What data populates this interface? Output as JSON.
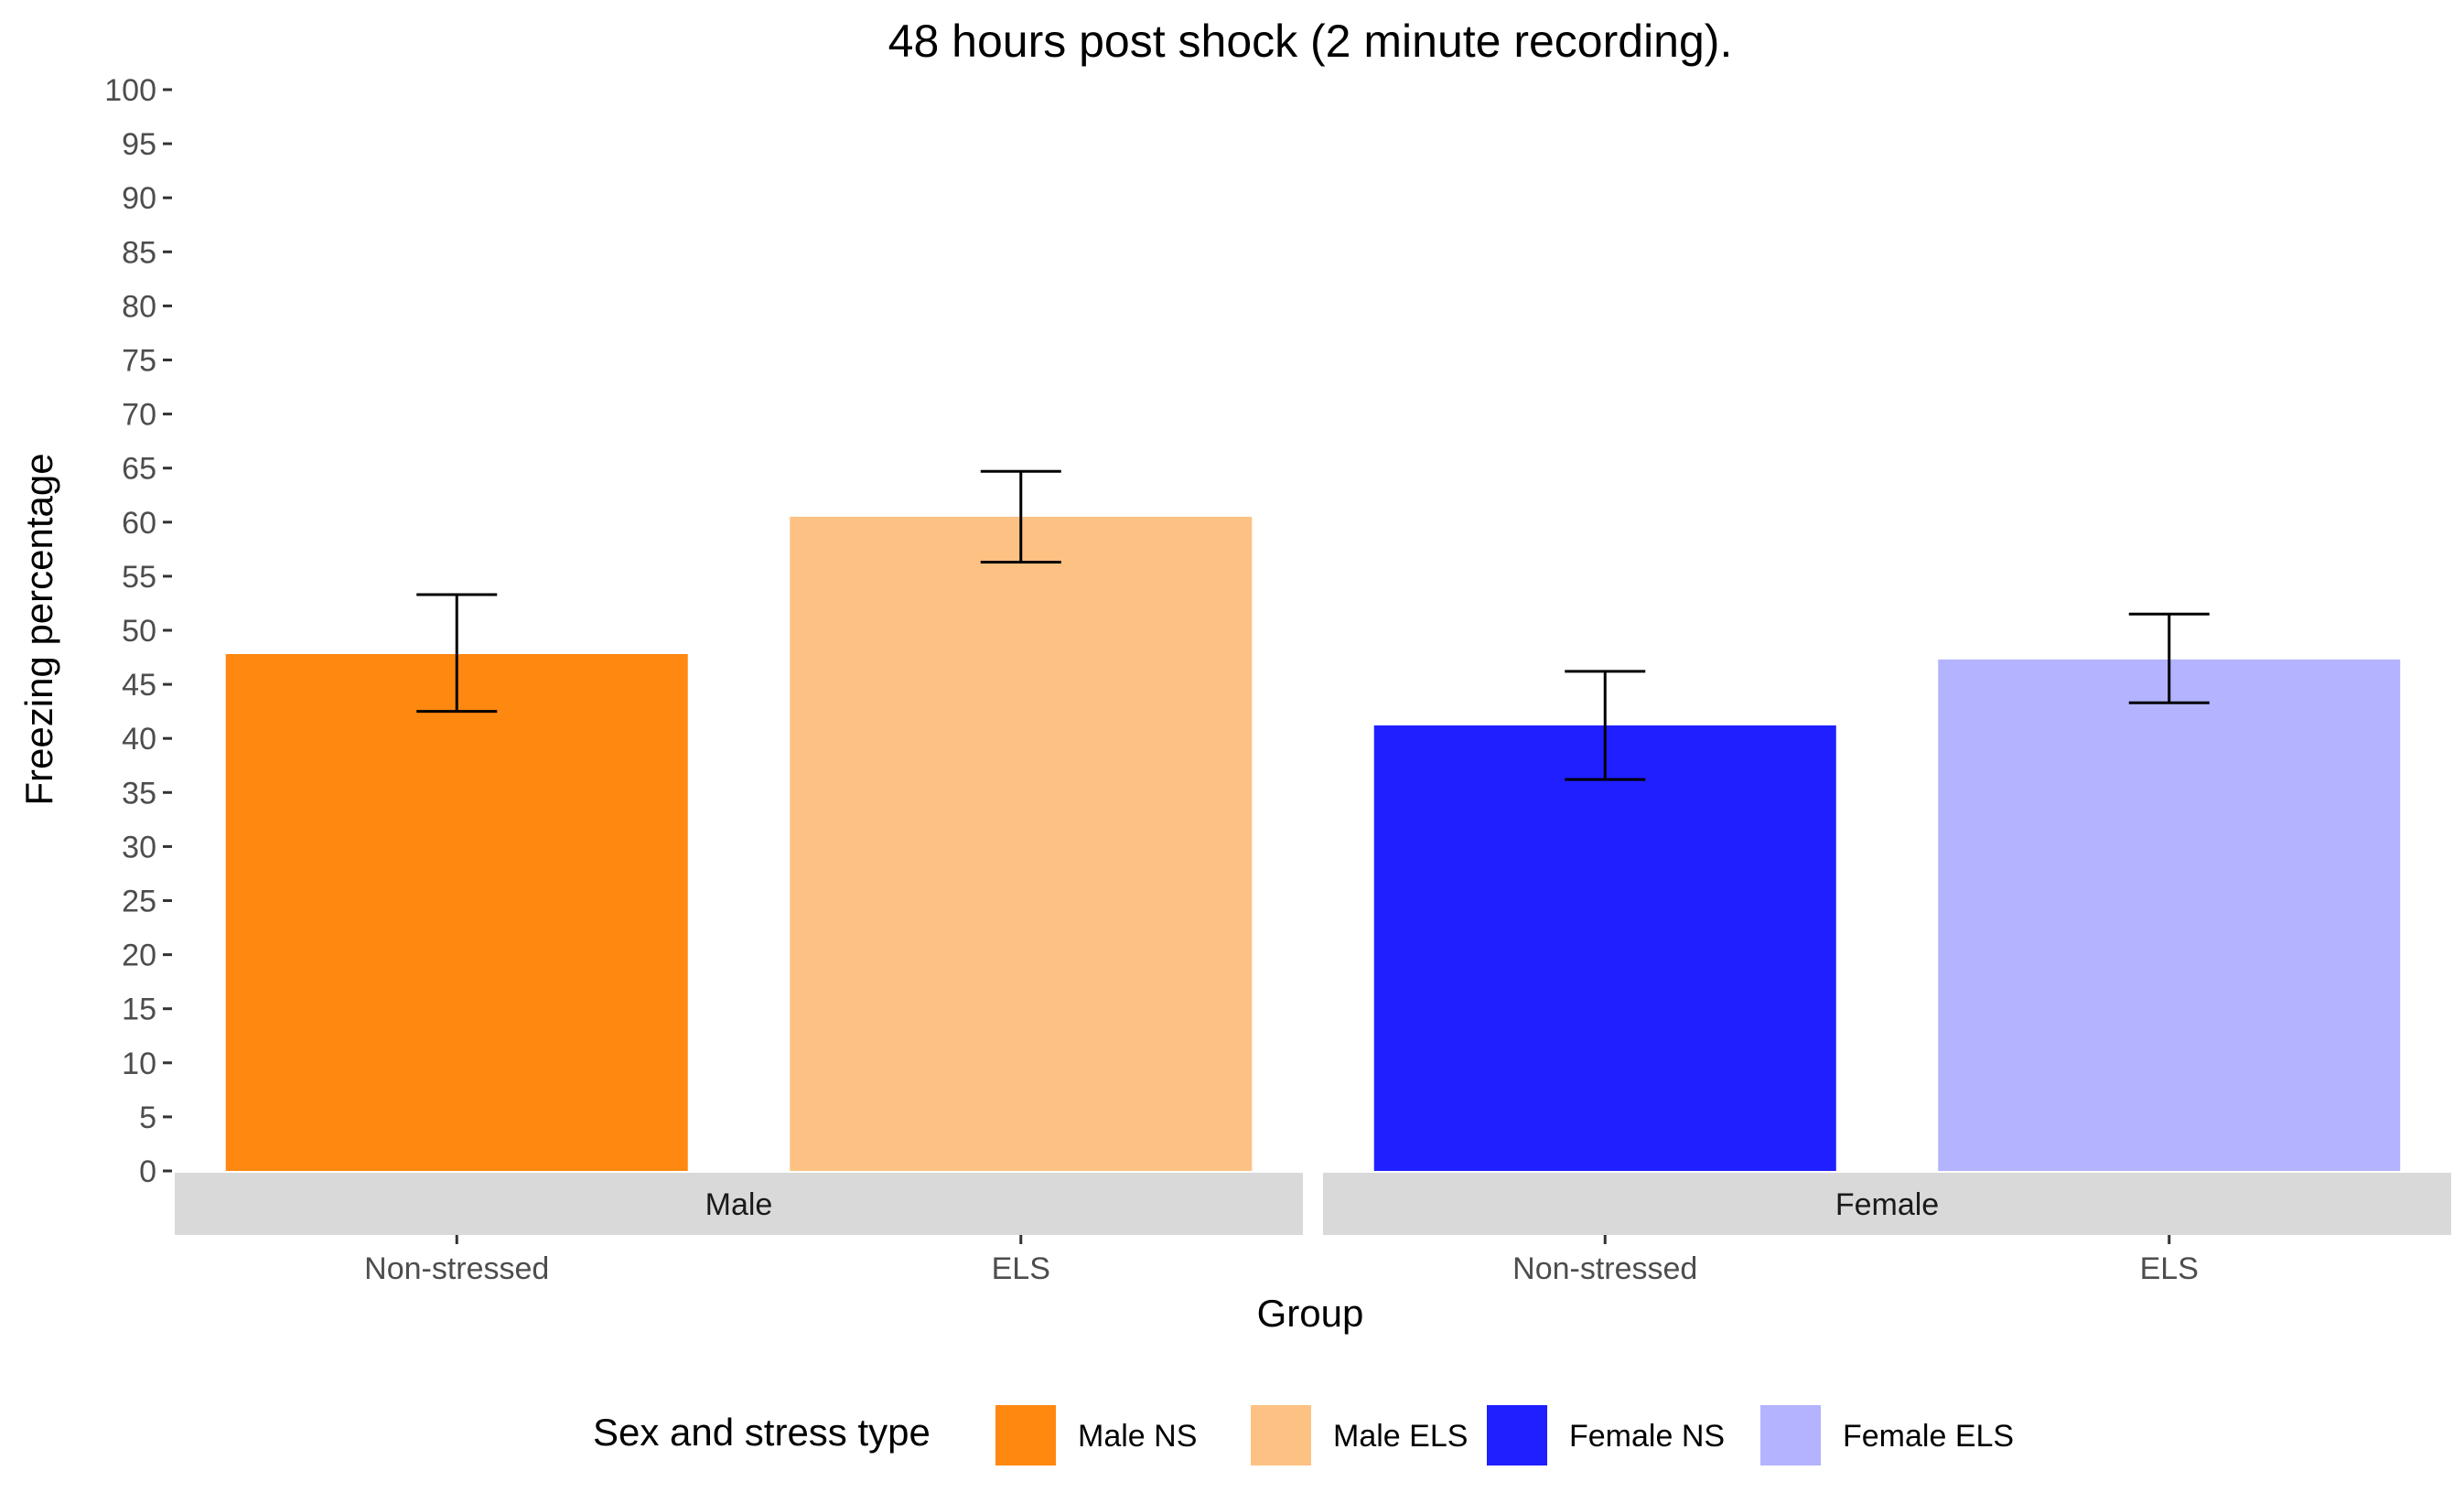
{
  "chart_data": {
    "type": "bar",
    "title": "48 hours post shock (2 minute recording).",
    "xlabel": "Group",
    "ylabel": "Freezing percentage",
    "ylim": [
      0,
      100
    ],
    "yticks": [
      0,
      5,
      10,
      15,
      20,
      25,
      30,
      35,
      40,
      45,
      50,
      55,
      60,
      65,
      70,
      75,
      80,
      85,
      90,
      95,
      100
    ],
    "grid": false,
    "legend_position": "bottom",
    "legend_title": "Sex and stress type",
    "panels": [
      {
        "label": "Male",
        "bars": [
          {
            "category": "Non-stressed",
            "series": "Male NS",
            "value": 47.8,
            "error_low": 42.5,
            "error_high": 53.3
          },
          {
            "category": "ELS",
            "series": "Male ELS",
            "value": 60.5,
            "error_low": 56.3,
            "error_high": 64.7
          }
        ]
      },
      {
        "label": "Female",
        "bars": [
          {
            "category": "Non-stressed",
            "series": "Female NS",
            "value": 41.2,
            "error_low": 36.2,
            "error_high": 46.2
          },
          {
            "category": "ELS",
            "series": "Female ELS",
            "value": 47.3,
            "error_low": 43.3,
            "error_high": 51.5
          }
        ]
      }
    ],
    "legend": [
      {
        "name": "Male NS",
        "color": "#ff8811"
      },
      {
        "name": "Male ELS",
        "color": "#fdc283"
      },
      {
        "name": "Female NS",
        "color": "#1f1fff"
      },
      {
        "name": "Female ELS",
        "color": "#b3b3ff"
      }
    ],
    "strip_color": "#d9d9d9"
  }
}
